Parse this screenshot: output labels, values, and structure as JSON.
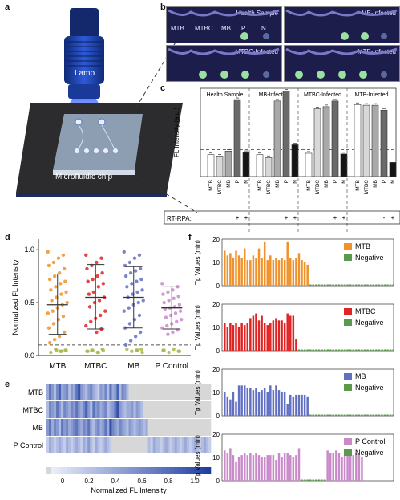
{
  "panels": {
    "a": "a",
    "b": "b",
    "c": "c",
    "d": "d",
    "e": "e",
    "f": "f"
  },
  "panel_a": {
    "lamp_label": "Lamp",
    "chip_label": "Microfluidic chip"
  },
  "panel_b": {
    "photos": [
      "Health Sample",
      "MB-Infected",
      "MTBC-Infected",
      "MTB-Infected"
    ],
    "wells": [
      "MTB",
      "MTBC",
      "MB",
      "P",
      "N"
    ]
  },
  "panel_c": {
    "ylabel": "FL Intensity (a.u.)",
    "rt_rpa_label": "RT-RPA:",
    "groups": [
      "Health Sample",
      "MB-Infected",
      "MTBC-Infected",
      "MTB-Infected"
    ],
    "categories": [
      "MTB",
      "MTBC",
      "MB",
      "P",
      "N"
    ],
    "signs": [
      [
        "",
        "",
        "",
        "+",
        "+"
      ],
      [
        "",
        "",
        "",
        "+",
        "+"
      ],
      [
        "",
        "",
        "",
        "+",
        "+"
      ],
      [
        "",
        "",
        "",
        "-",
        "+"
      ]
    ]
  },
  "panel_d": {
    "ylabel": "Normalized FL Intensity",
    "yticks": [
      "0.0",
      "0.5",
      "1.0"
    ],
    "xticks": [
      "MTB",
      "MTBC",
      "MB",
      "P Control"
    ]
  },
  "panel_e": {
    "rows": [
      "MTB",
      "MTBC",
      "MB",
      "P Control"
    ],
    "colorbar_ticks": [
      "0",
      "0.2",
      "0.4",
      "0.6",
      "0.8",
      "1.0"
    ],
    "colorbar_label": "Normalized FL Intensity"
  },
  "panel_f": {
    "ylabel": "Tp Values (min)",
    "yticks": [
      "0",
      "10",
      "20"
    ],
    "subplots": [
      {
        "legend": [
          "MTB",
          "Negative"
        ]
      },
      {
        "legend": [
          "MTBC",
          "Negative"
        ]
      },
      {
        "legend": [
          "MB",
          "Negative"
        ]
      },
      {
        "legend": [
          "P Control",
          "Negative"
        ]
      }
    ]
  },
  "colors": {
    "mtb": "#f0922b",
    "mtbc": "#e02323",
    "mb": "#6270c4",
    "pc": "#c88ac8",
    "neg": "#5a9a4a",
    "heat_low": "#eef2fb",
    "heat_high": "#1f3fa3"
  },
  "chart_data": [
    {
      "type": "bar",
      "panel": "c",
      "ylabel": "FL Intensity (a.u.)",
      "categories": [
        "MTB",
        "MTBC",
        "MB",
        "P",
        "N"
      ],
      "series": [
        {
          "name": "Health Sample",
          "values": [
            31,
            29,
            36,
            109,
            34
          ]
        },
        {
          "name": "MB-Infected",
          "values": [
            31,
            27,
            107,
            121,
            45
          ]
        },
        {
          "name": "MTBC-Infected",
          "values": [
            33,
            96,
            99,
            107,
            32
          ]
        },
        {
          "name": "MTB-Infected",
          "values": [
            102,
            101,
            101,
            94,
            20
          ]
        }
      ],
      "threshold": 38,
      "ylim": [
        0,
        125
      ]
    },
    {
      "type": "scatter",
      "panel": "d",
      "ylabel": "Normalized FL Intensity",
      "categories": [
        "MTB",
        "MTBC",
        "MB",
        "P Control"
      ],
      "series": [
        {
          "name": "MTB",
          "mean": 0.48,
          "upper": 0.77,
          "lower": 0.2,
          "values": [
            0.98,
            0.95,
            0.92,
            0.88,
            0.85,
            0.82,
            0.78,
            0.75,
            0.72,
            0.7,
            0.68,
            0.65,
            0.62,
            0.6,
            0.58,
            0.55,
            0.52,
            0.5,
            0.48,
            0.45,
            0.42,
            0.4,
            0.37,
            0.34,
            0.3,
            0.26,
            0.22,
            0.18,
            0.15,
            0.12,
            0.05,
            0.04,
            0.06,
            0.03,
            0.05,
            0.04,
            0.05
          ]
        },
        {
          "name": "MTBC",
          "mean": 0.55,
          "upper": 0.86,
          "lower": 0.25,
          "values": [
            0.95,
            0.92,
            0.88,
            0.85,
            0.82,
            0.78,
            0.75,
            0.72,
            0.7,
            0.68,
            0.65,
            0.6,
            0.58,
            0.55,
            0.52,
            0.5,
            0.46,
            0.42,
            0.38,
            0.35,
            0.32,
            0.28,
            0.25,
            0.22,
            0.05,
            0.04,
            0.06,
            0.03,
            0.05,
            0.04,
            0.05,
            0.03
          ]
        },
        {
          "name": "MB",
          "mean": 0.55,
          "upper": 0.84,
          "lower": 0.26,
          "values": [
            0.98,
            0.95,
            0.92,
            0.88,
            0.85,
            0.82,
            0.8,
            0.78,
            0.75,
            0.72,
            0.7,
            0.68,
            0.65,
            0.62,
            0.6,
            0.58,
            0.55,
            0.52,
            0.5,
            0.48,
            0.45,
            0.42,
            0.38,
            0.34,
            0.3,
            0.26,
            0.22,
            0.18,
            0.14,
            0.1,
            0.06,
            0.05,
            0.04,
            0.06,
            0.03,
            0.05
          ]
        },
        {
          "name": "P Control",
          "mean": 0.45,
          "upper": 0.65,
          "lower": 0.25,
          "values": [
            0.68,
            0.65,
            0.62,
            0.6,
            0.58,
            0.56,
            0.54,
            0.52,
            0.5,
            0.48,
            0.46,
            0.45,
            0.44,
            0.42,
            0.4,
            0.38,
            0.36,
            0.34,
            0.32,
            0.3,
            0.28,
            0.26,
            0.24,
            0.22,
            0.2,
            0.05,
            0.04,
            0.06,
            0.03,
            0.05,
            0.04
          ]
        }
      ],
      "threshold": 0.1,
      "ylim": [
        0,
        1.1
      ]
    },
    {
      "type": "heatmap",
      "panel": "e",
      "rows": [
        "MTB",
        "MTBC",
        "MB",
        "P Control"
      ],
      "values": [
        [
          0.4,
          0.7,
          0.5,
          0.3,
          0.6,
          0.8,
          0.4,
          0.5,
          0.6,
          0.3,
          0.5,
          0.4,
          0.7,
          0.9,
          0.5,
          0.4,
          0.3,
          0.5,
          0.6,
          0.4,
          0.3,
          0.2,
          0.5,
          0.4,
          0.6,
          0.3,
          0.7,
          0.4,
          0.5,
          0.8,
          0.3,
          0.6,
          0.5,
          0.3,
          0,
          0,
          0,
          0,
          0,
          0,
          0,
          0,
          0,
          0,
          0,
          0,
          0,
          0,
          0,
          0,
          0,
          0,
          0,
          0,
          0,
          0,
          0,
          0,
          0,
          0,
          0,
          0,
          0,
          0,
          0,
          0,
          0,
          0
        ],
        [
          0.3,
          0.6,
          0.5,
          0.4,
          0.7,
          0.5,
          0.3,
          0.6,
          0.5,
          0.4,
          0.6,
          0.5,
          0.7,
          0.5,
          0.4,
          0.6,
          0.8,
          0.5,
          0.3,
          0.7,
          0.5,
          0.6,
          0.4,
          0.5,
          0.6,
          0.3,
          0.4,
          0.5,
          0.7,
          0.9,
          0.5,
          0.4,
          0.3,
          0.4,
          0.4,
          0.5,
          0.3,
          0.5,
          0.4,
          0.3,
          0.0,
          0.0,
          0.0,
          0.0,
          0.0,
          0.0,
          0.0,
          0.0,
          0.0,
          0.0,
          0.0,
          0.0,
          0.0,
          0.0,
          0.0,
          0.0,
          0.0,
          0.0,
          0.0,
          0.0,
          0.0,
          0.0,
          0.0,
          0.0,
          0.0,
          0.0,
          0.0,
          0.0
        ],
        [
          0.5,
          0.7,
          0.4,
          0.6,
          0.5,
          0.3,
          0.7,
          0.5,
          0.6,
          0.4,
          0.5,
          0.6,
          0.7,
          0.5,
          0.4,
          0.6,
          0.5,
          0.7,
          0.4,
          0.3,
          0.5,
          0.6,
          0.4,
          0.5,
          0.7,
          0.4,
          0.9,
          0.6,
          0.5,
          0.4,
          0.6,
          0.5,
          0.4,
          0.3,
          0.5,
          0.4,
          0.3,
          0.4,
          0.5,
          0.4,
          0.3,
          0.4,
          0.0,
          0.0,
          0.0,
          0.0,
          0.0,
          0.0,
          0.0,
          0.0,
          0.0,
          0.0,
          0.0,
          0.0,
          0.0,
          0.0,
          0.0,
          0.0,
          0.0,
          0.0,
          0.0,
          0.0,
          0.0,
          0.0,
          0.0,
          0.0,
          0.0,
          0.0
        ],
        [
          0.2,
          0.4,
          0.3,
          0.2,
          0.3,
          0.4,
          0.3,
          0.2,
          0.4,
          0.3,
          0.2,
          0.3,
          0.4,
          0.3,
          0.2,
          0.4,
          0.3,
          0.5,
          0.3,
          0.2,
          0.4,
          0.3,
          0.2,
          0.3,
          0.4,
          0.3,
          0.2,
          0.0,
          0.0,
          0.0,
          0.0,
          0.0,
          0.0,
          0.0,
          0.0,
          0.0,
          0.0,
          0.0,
          0.0,
          0.0,
          0.0,
          0.0,
          0.3,
          0.2,
          0.4,
          0.3,
          0.3,
          0.2,
          0.3,
          0.4,
          0.3,
          0.2,
          0.3,
          0.4,
          0.3,
          0.2,
          0.3,
          0.4,
          0.3,
          0.2,
          0.3,
          0.4,
          0.3,
          0.2,
          0.3,
          0.4,
          0.3,
          0.2
        ]
      ],
      "colorbar_ticks": [
        0,
        0.2,
        0.4,
        0.6,
        0.8,
        1.0
      ]
    },
    {
      "type": "bar",
      "panel": "f",
      "ylabel": "Tp Values (min)",
      "ylim": [
        0,
        20
      ],
      "series": [
        {
          "name": "MTB",
          "values": [
            15,
            13,
            14,
            12,
            15,
            13,
            12,
            16,
            11,
            11,
            13,
            12,
            16,
            12,
            19,
            11,
            13,
            11,
            12,
            11,
            12,
            11,
            19,
            12,
            11,
            12,
            14,
            11,
            10,
            9
          ]
        },
        {
          "name": "MTBC",
          "values": [
            12,
            10,
            12,
            11,
            12,
            10,
            12,
            11,
            12,
            14,
            15,
            16,
            13,
            15,
            12,
            11,
            12,
            13,
            14,
            13,
            13,
            12,
            16,
            15,
            15,
            5
          ]
        },
        {
          "name": "MB",
          "values": [
            10,
            8,
            7,
            10,
            6,
            13,
            13,
            13,
            12,
            12,
            11,
            12,
            10,
            11,
            12,
            10,
            13,
            11,
            13,
            11,
            10,
            10,
            5,
            9,
            8,
            9,
            9,
            9,
            9,
            8
          ]
        },
        {
          "name": "P Control",
          "values": [
            13,
            12,
            14,
            11,
            8,
            10,
            11,
            12,
            11,
            12,
            11,
            12,
            11,
            10,
            10,
            11,
            11,
            11,
            9,
            12,
            10,
            12,
            12,
            11,
            10,
            11,
            14,
            13,
            12,
            12,
            13,
            12,
            10,
            11,
            11,
            12,
            11,
            12,
            11,
            10
          ]
        }
      ]
    }
  ]
}
